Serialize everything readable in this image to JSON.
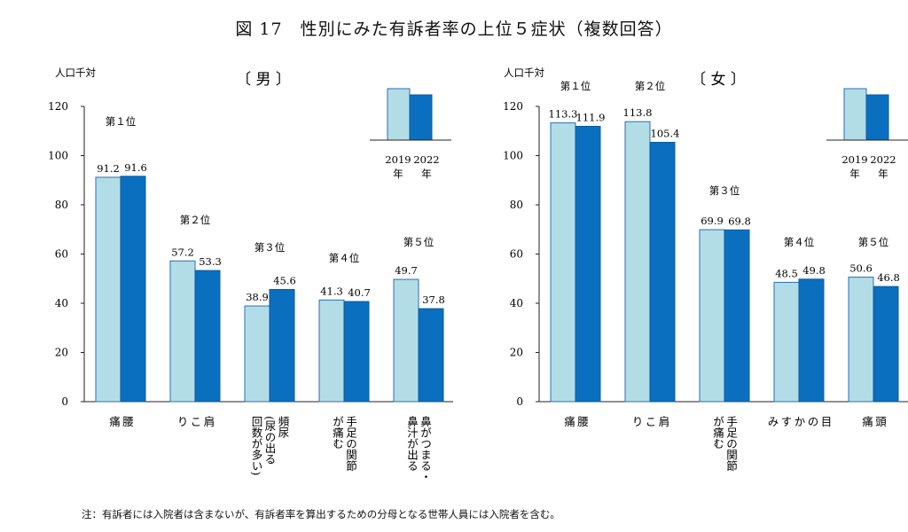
{
  "title": "図 17　性別にみた有訴者率の上位５症状（複数回答）",
  "note": "注：有訴者には入院者は含まないが、有訴者率を算出するための分母となる世帯人員には入院者を含む。",
  "legend": {
    "labels": [
      "2019\n年",
      "2022\n年"
    ]
  },
  "colors": {
    "y2019": "#b3dde6",
    "y2022": "#0b6fc0",
    "edge2019": "#2a6fb5",
    "edge2022": "#0b5aa0"
  },
  "chart_data": [
    {
      "type": "bar",
      "title": "〔 男 〕",
      "ylabel": "人口千対",
      "ylim": [
        0,
        120
      ],
      "yticks": [
        0,
        20,
        40,
        60,
        80,
        100,
        120
      ],
      "categories": [
        "腰\n痛",
        "肩\nこ\nり",
        "頻尿\n(尿の出る\n回数が多い)",
        "手足の関節\nが痛む",
        "鼻がつまる・\n鼻汁が出る"
      ],
      "ranks": [
        "第１位",
        "第２位",
        "第３位",
        "第４位",
        "第５位"
      ],
      "series": [
        {
          "name": "2019年",
          "values": [
            91.2,
            57.2,
            38.9,
            41.3,
            49.7
          ]
        },
        {
          "name": "2022年",
          "values": [
            91.6,
            53.3,
            45.6,
            40.7,
            37.8
          ]
        }
      ]
    },
    {
      "type": "bar",
      "title": "〔 女 〕",
      "ylabel": "人口千対",
      "ylim": [
        0,
        120
      ],
      "yticks": [
        0,
        20,
        40,
        60,
        80,
        100,
        120
      ],
      "categories": [
        "腰\n痛",
        "肩\nこ\nり",
        "手足の関節\nが痛む",
        "目\nの\nか\nす\nみ",
        "頭\n痛"
      ],
      "ranks": [
        "第１位",
        "第２位",
        "第３位",
        "第４位",
        "第５位"
      ],
      "series": [
        {
          "name": "2019年",
          "values": [
            113.3,
            113.8,
            69.9,
            48.5,
            50.6
          ]
        },
        {
          "name": "2022年",
          "values": [
            111.9,
            105.4,
            69.8,
            49.8,
            46.8
          ]
        }
      ]
    }
  ]
}
